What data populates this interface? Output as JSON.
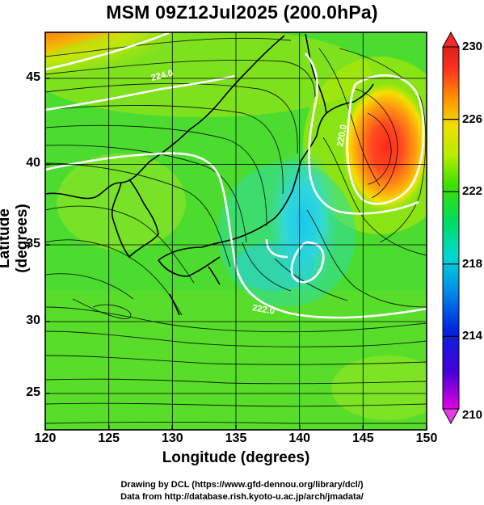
{
  "title": "MSM 09Z12Jul2025 (200.0hPa)",
  "x_axis": {
    "label": "Longitude (degrees)",
    "ticks": [
      {
        "value": 120,
        "label": "120"
      },
      {
        "value": 125,
        "label": "125"
      },
      {
        "value": 130,
        "label": "130"
      },
      {
        "value": 135,
        "label": "135"
      },
      {
        "value": 140,
        "label": "140"
      },
      {
        "value": 145,
        "label": "145"
      },
      {
        "value": 150,
        "label": "150"
      }
    ],
    "range": [
      120,
      150
    ]
  },
  "y_axis": {
    "label": "Latitude  (degrees)",
    "ticks": [
      {
        "value": 25,
        "label": "25"
      },
      {
        "value": 30,
        "label": "30"
      },
      {
        "value": 35,
        "label": "35"
      },
      {
        "value": 40,
        "label": "40"
      },
      {
        "value": 45,
        "label": "45"
      }
    ],
    "range": [
      22.5,
      47.6
    ]
  },
  "colorbar": {
    "ticks": [
      {
        "value": 230,
        "label": "230"
      },
      {
        "value": 226,
        "label": "226"
      },
      {
        "value": 222,
        "label": "222"
      },
      {
        "value": 218,
        "label": "218"
      },
      {
        "value": 214,
        "label": "214"
      },
      {
        "value": 210,
        "label": "210"
      }
    ],
    "range": [
      210,
      230
    ],
    "colors": [
      "#e400e6",
      "#4a00d8",
      "#0026e0",
      "#0090e8",
      "#00d8d0",
      "#00dc60",
      "#40e000",
      "#b8ec00",
      "#f0e000",
      "#ff9000",
      "#ff3020",
      "#d82020"
    ]
  },
  "contour_labels": [
    {
      "text": "224.0",
      "lon": 129.0,
      "lat": 45.7
    },
    {
      "text": "222.0",
      "lon": 138.5,
      "lat": 29.6
    },
    {
      "text": "220.0",
      "lon": 143.3,
      "lat": 41.0
    }
  ],
  "credits": [
    "Drawing by DCL (https://www.gfd-dennou.org/library/dcl/)",
    "Data from http://database.rish.kyoto-u.ac.jp/arch/jmadata/"
  ]
}
